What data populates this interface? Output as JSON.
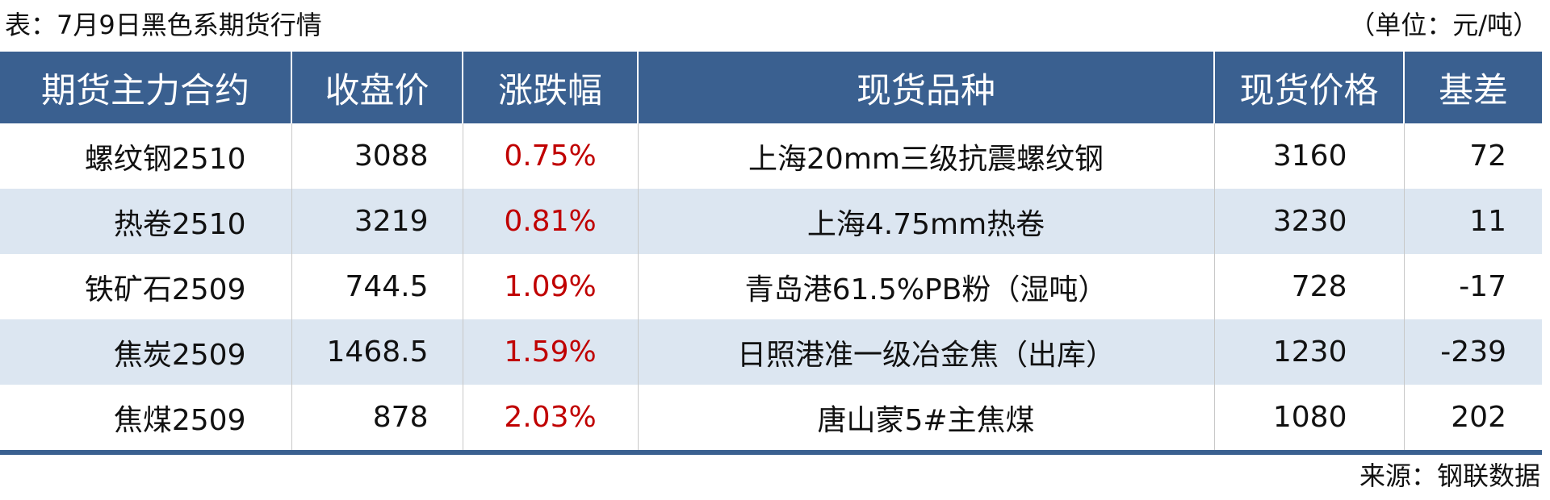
{
  "title": "表：7月9日黑色系期货行情",
  "unit": "（单位：元/吨）",
  "colors": {
    "header_bg": "#3a6090",
    "alt_row_bg": "#dce6f1",
    "change_text": "#c00000"
  },
  "headers": [
    "期货主力合约",
    "收盘价",
    "涨跌幅",
    "现货品种",
    "现货价格",
    "基差"
  ],
  "rows": [
    {
      "contract": "螺纹钢2510",
      "close": "3088",
      "change": "0.75%",
      "spot": "上海20mm三级抗震螺纹钢",
      "spot_price": "3160",
      "basis": "72"
    },
    {
      "contract": "热卷2510",
      "close": "3219",
      "change": "0.81%",
      "spot": "上海4.75mm热卷",
      "spot_price": "3230",
      "basis": "11"
    },
    {
      "contract": "铁矿石2509",
      "close": "744.5",
      "change": "1.09%",
      "spot": "青岛港61.5%PB粉（湿吨）",
      "spot_price": "728",
      "basis": "-17"
    },
    {
      "contract": "焦炭2509",
      "close": "1468.5",
      "change": "1.59%",
      "spot": "日照港准一级冶金焦（出库）",
      "spot_price": "1230",
      "basis": "-239"
    },
    {
      "contract": "焦煤2509",
      "close": "878",
      "change": "2.03%",
      "spot": "唐山蒙5#主焦煤",
      "spot_price": "1080",
      "basis": "202"
    }
  ],
  "source": "来源：钢联数据"
}
